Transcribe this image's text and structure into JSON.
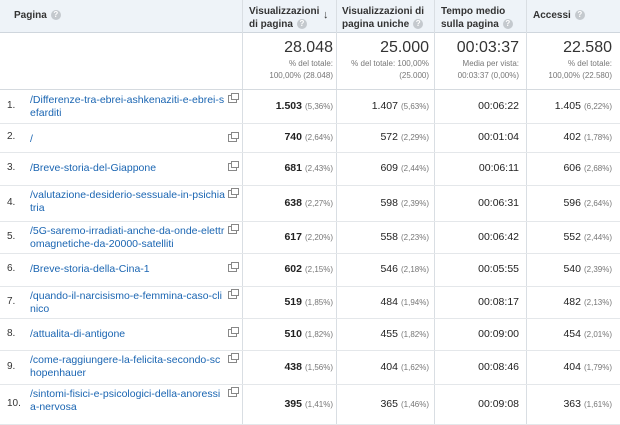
{
  "headers": {
    "page": "Pagina",
    "views": "Visualizzazioni di pagina",
    "unique": "Visualizzazioni di pagina uniche",
    "avg_time": "Tempo medio sulla pagina",
    "entrances": "Accessi"
  },
  "totals": {
    "views": {
      "value": "28.048",
      "sub1": "% del totale:",
      "sub2": "100,00% (28.048)"
    },
    "unique": {
      "value": "25.000",
      "sub1": "% del totale: 100,00%",
      "sub2": "(25.000)"
    },
    "avg_time": {
      "value": "00:03:37",
      "sub1": "Media per vista:",
      "sub2": "00:03:37 (0,00%)"
    },
    "entrances": {
      "value": "22.580",
      "sub1": "% del totale:",
      "sub2": "100,00% (22.580)"
    }
  },
  "rows": [
    {
      "idx": "1.",
      "page": "/Differenze-tra-ebrei-ashkenaziti-e-ebrei-sefarditi",
      "views": "1.503",
      "views_pct": "(5,36%)",
      "unique": "1.407",
      "unique_pct": "(5,63%)",
      "time": "00:06:22",
      "entr": "1.405",
      "entr_pct": "(6,22%)"
    },
    {
      "idx": "2.",
      "page": "/",
      "views": "740",
      "views_pct": "(2,64%)",
      "unique": "572",
      "unique_pct": "(2,29%)",
      "time": "00:01:04",
      "entr": "402",
      "entr_pct": "(1,78%)"
    },
    {
      "idx": "3.",
      "page": "/Breve-storia-del-Giappone",
      "views": "681",
      "views_pct": "(2,43%)",
      "unique": "609",
      "unique_pct": "(2,44%)",
      "time": "00:06:11",
      "entr": "606",
      "entr_pct": "(2,68%)"
    },
    {
      "idx": "4.",
      "page": "/valutazione-desiderio-sessuale-in-psichiatria",
      "views": "638",
      "views_pct": "(2,27%)",
      "unique": "598",
      "unique_pct": "(2,39%)",
      "time": "00:06:31",
      "entr": "596",
      "entr_pct": "(2,64%)"
    },
    {
      "idx": "5.",
      "page": "/5G-saremo-irradiati-anche-da-onde-elettromagnetiche-da-20000-satelliti",
      "views": "617",
      "views_pct": "(2,20%)",
      "unique": "558",
      "unique_pct": "(2,23%)",
      "time": "00:06:42",
      "entr": "552",
      "entr_pct": "(2,44%)"
    },
    {
      "idx": "6.",
      "page": "/Breve-storia-della-Cina-1",
      "views": "602",
      "views_pct": "(2,15%)",
      "unique": "546",
      "unique_pct": "(2,18%)",
      "time": "00:05:55",
      "entr": "540",
      "entr_pct": "(2,39%)"
    },
    {
      "idx": "7.",
      "page": "/quando-il-narcisismo-e-femmina-caso-clinico",
      "views": "519",
      "views_pct": "(1,85%)",
      "unique": "484",
      "unique_pct": "(1,94%)",
      "time": "00:08:17",
      "entr": "482",
      "entr_pct": "(2,13%)"
    },
    {
      "idx": "8.",
      "page": "/attualita-di-antigone",
      "views": "510",
      "views_pct": "(1,82%)",
      "unique": "455",
      "unique_pct": "(1,82%)",
      "time": "00:09:00",
      "entr": "454",
      "entr_pct": "(2,01%)"
    },
    {
      "idx": "9.",
      "page": "/come-raggiungere-la-felicita-secondo-schopenhauer",
      "views": "438",
      "views_pct": "(1,56%)",
      "unique": "404",
      "unique_pct": "(1,62%)",
      "time": "00:08:46",
      "entr": "404",
      "entr_pct": "(1,79%)"
    },
    {
      "idx": "10.",
      "page": "/sintomi-fisici-e-psicologici-della-anoressia-nervosa",
      "views": "395",
      "views_pct": "(1,41%)",
      "unique": "365",
      "unique_pct": "(1,46%)",
      "time": "00:09:08",
      "entr": "363",
      "entr_pct": "(1,61%)"
    }
  ]
}
